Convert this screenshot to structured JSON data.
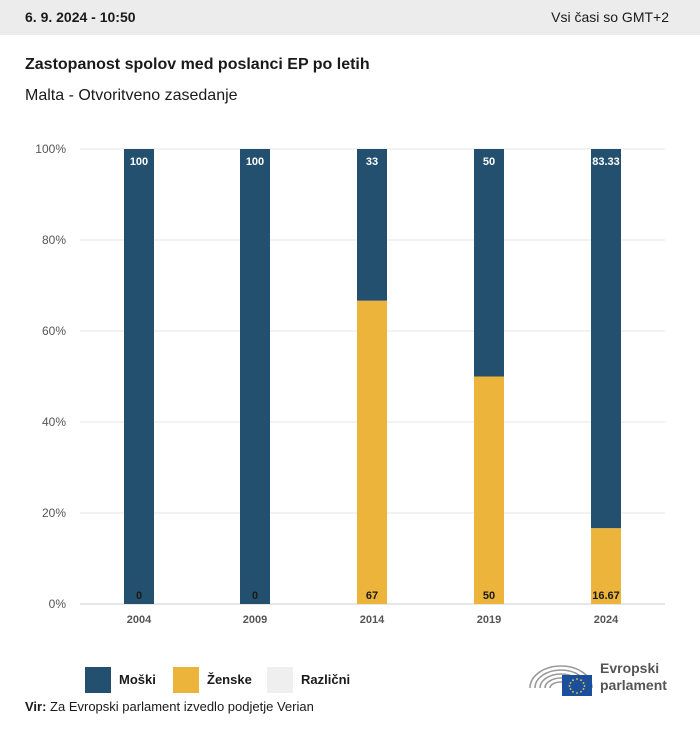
{
  "header": {
    "datetime": "6. 9. 2024 - 10:50",
    "timezone": "Vsi časi so GMT+2"
  },
  "title": "Zastopanost spolov med poslanci EP po letih",
  "subtitle": "Malta - Otvoritveno zasedanje",
  "colors": {
    "male": "#24506f",
    "female": "#ecb43a",
    "other": "#efefef",
    "grid": "#e4e4e4"
  },
  "chart_data": {
    "type": "bar",
    "stacked": true,
    "categories": [
      "2004",
      "2009",
      "2014",
      "2019",
      "2024"
    ],
    "series": [
      {
        "name": "Moški",
        "values": [
          100,
          100,
          33.33,
          50,
          83.33
        ],
        "labels": [
          "100",
          "100",
          "33",
          "50",
          "83.33"
        ]
      },
      {
        "name": "Ženske",
        "values": [
          0,
          0,
          66.67,
          50,
          16.67
        ],
        "labels": [
          "0",
          "0",
          "67",
          "50",
          "16.67"
        ]
      },
      {
        "name": "Različni",
        "values": [
          0,
          0,
          0,
          0,
          0
        ],
        "labels": []
      }
    ],
    "yticks": [
      "0%",
      "20%",
      "40%",
      "60%",
      "80%",
      "100%"
    ],
    "ylim": [
      0,
      100
    ],
    "grid": true,
    "legend_position": "bottom-left"
  },
  "legend": {
    "items": [
      {
        "label": "Moški"
      },
      {
        "label": "Ženske"
      },
      {
        "label": "Različni"
      }
    ]
  },
  "footer": {
    "source_label": "Vir:",
    "source_text": " Za Evropski parlament izvedlo podjetje Verian",
    "logo_line1": "Evropski",
    "logo_line2": "parlament"
  }
}
